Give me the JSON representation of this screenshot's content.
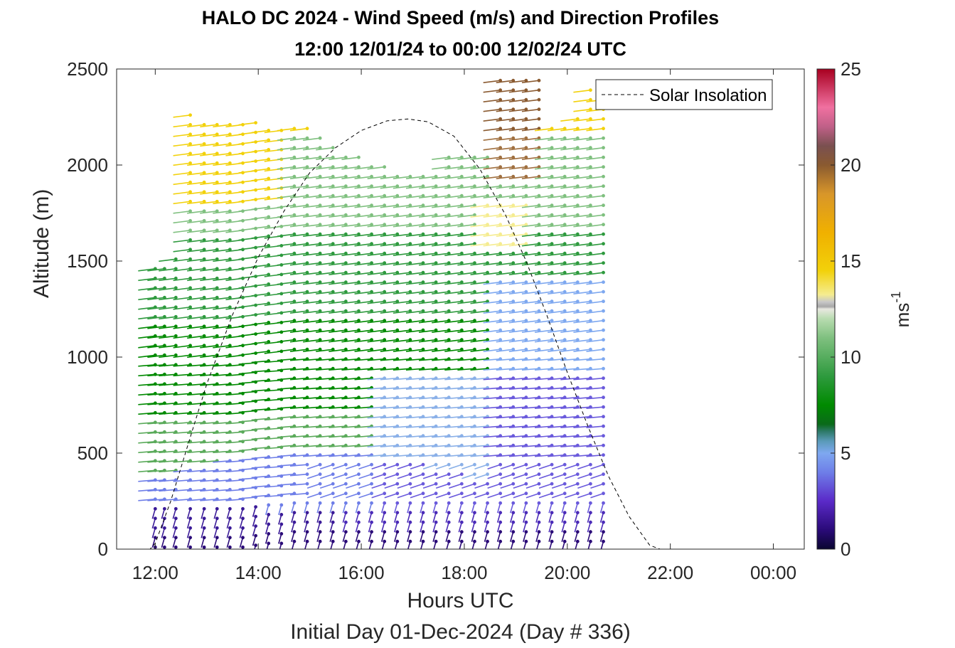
{
  "chart_data": {
    "type": "scatter",
    "title": "HALO DC 2024 - Wind Speed (m/s) and Direction Profiles",
    "subtitle": "12:00 12/01/24 to 00:00 12/02/24  UTC",
    "xlabel": "Hours UTC",
    "ylabel": "Altitude (m)",
    "footnote": "Initial Day 01-Dec-2024 (Day # 336)",
    "colorbar_label": "ms-1",
    "colorbar_label_base": "ms",
    "colorbar_label_exp": "-1",
    "xlim": [
      11.25,
      24.6
    ],
    "ylim": [
      0,
      2500
    ],
    "xticks": [
      12,
      14,
      16,
      18,
      20,
      22,
      24
    ],
    "xtick_labels": [
      "12:00",
      "14:00",
      "16:00",
      "18:00",
      "20:00",
      "22:00",
      "00:00"
    ],
    "yticks": [
      0,
      500,
      1000,
      1500,
      2000,
      2500
    ],
    "ytick_labels": [
      "0",
      "500",
      "1000",
      "1500",
      "2000",
      "2500"
    ],
    "clim": [
      0,
      25
    ],
    "cticks": [
      0,
      5,
      10,
      15,
      20,
      25
    ],
    "ctick_labels": [
      "0",
      "5",
      "10",
      "15",
      "20",
      "25"
    ],
    "legend": {
      "entries": [
        "Solar Insolation"
      ],
      "position": "top-right"
    },
    "solar_insolation": {
      "style": "dashed",
      "x": [
        11.25,
        11.9,
        12.0,
        12.3,
        12.7,
        13.0,
        13.5,
        14.0,
        14.5,
        15.0,
        15.5,
        16.0,
        16.5,
        16.9,
        17.3,
        17.8,
        18.3,
        18.8,
        19.2,
        19.6,
        20.0,
        20.4,
        20.8,
        21.2,
        21.6,
        21.8,
        22.0,
        24.6
      ],
      "y": [
        0,
        0,
        30,
        250,
        600,
        860,
        1220,
        1520,
        1760,
        1960,
        2090,
        2180,
        2230,
        2240,
        2225,
        2150,
        1980,
        1740,
        1500,
        1220,
        920,
        640,
        380,
        170,
        20,
        0,
        0,
        0
      ]
    },
    "wind_profile_columns": [
      {
        "t": 12.0,
        "top": 1460,
        "low": 10
      },
      {
        "t": 12.18,
        "top": 1460,
        "low": 10
      },
      {
        "t": 12.4,
        "top": 1520,
        "low": 10
      },
      {
        "t": 12.68,
        "top": 2270,
        "low": 10
      },
      {
        "t": 12.95,
        "top": 2250,
        "low": 10
      },
      {
        "t": 13.2,
        "top": 2240,
        "low": 10
      },
      {
        "t": 13.45,
        "top": 2230,
        "low": 10
      },
      {
        "t": 13.7,
        "top": 2220,
        "low": 10
      },
      {
        "t": 13.95,
        "top": 2220,
        "low": 20
      },
      {
        "t": 14.2,
        "top": 2210,
        "low": 30
      },
      {
        "t": 14.45,
        "top": 2200,
        "low": 30
      },
      {
        "t": 14.7,
        "top": 2200,
        "low": 40
      },
      {
        "t": 14.95,
        "top": 2200,
        "low": 40
      },
      {
        "t": 15.2,
        "top": 2150,
        "low": 40
      },
      {
        "t": 15.45,
        "top": 2120,
        "low": 40
      },
      {
        "t": 15.7,
        "top": 2080,
        "low": 40
      },
      {
        "t": 15.95,
        "top": 2060,
        "low": 40
      },
      {
        "t": 16.2,
        "top": 2000,
        "low": 40
      },
      {
        "t": 16.45,
        "top": 1990,
        "low": 40
      },
      {
        "t": 16.7,
        "top": 1980,
        "low": 40
      },
      {
        "t": 16.95,
        "top": 1970,
        "low": 40
      },
      {
        "t": 17.2,
        "top": 1950,
        "low": 40
      },
      {
        "t": 17.45,
        "top": 1940,
        "low": 40
      },
      {
        "t": 17.7,
        "top": 2060,
        "low": 40
      },
      {
        "t": 17.95,
        "top": 2060,
        "low": 40
      },
      {
        "t": 18.2,
        "top": 2060,
        "low": 40
      },
      {
        "t": 18.45,
        "top": 2050,
        "low": 40
      },
      {
        "t": 18.7,
        "top": 2440,
        "low": 40
      },
      {
        "t": 18.95,
        "top": 2450,
        "low": 40
      },
      {
        "t": 19.2,
        "top": 2470,
        "low": 40
      },
      {
        "t": 19.45,
        "top": 2470,
        "low": 40
      },
      {
        "t": 19.7,
        "top": 2220,
        "low": 40
      },
      {
        "t": 19.95,
        "top": 2200,
        "low": 40
      },
      {
        "t": 20.2,
        "top": 2280,
        "low": 40
      },
      {
        "t": 20.45,
        "top": 2400,
        "low": 40
      },
      {
        "t": 20.7,
        "top": 2380,
        "low": 40
      }
    ]
  }
}
